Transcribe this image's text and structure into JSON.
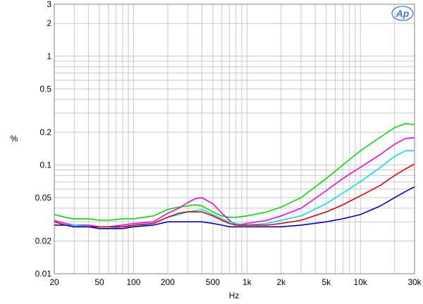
{
  "chart_data": {
    "type": "line",
    "title": "",
    "xlabel": "Hz",
    "ylabel": "%",
    "xscale": "log",
    "yscale": "log",
    "xlim": [
      20,
      30000
    ],
    "ylim": [
      0.01,
      3
    ],
    "grid": true,
    "x_ticks": [
      "20",
      "50",
      "100",
      "200",
      "500",
      "1k",
      "2k",
      "5k",
      "10k",
      "30k"
    ],
    "y_ticks": [
      "3",
      "2",
      "1",
      "0.5",
      "0.2",
      "0.1",
      "0.05",
      "0.02",
      "0.01"
    ],
    "logo": "Ap",
    "series": [
      {
        "color": "#00dd00",
        "x": [
          20,
          25,
          30,
          40,
          50,
          60,
          80,
          100,
          150,
          200,
          250,
          300,
          350,
          400,
          500,
          600,
          700,
          800,
          1000,
          1500,
          2000,
          3000,
          5000,
          7000,
          10000,
          15000,
          20000,
          25000,
          30000
        ],
        "y": [
          0.035,
          0.033,
          0.032,
          0.032,
          0.031,
          0.031,
          0.032,
          0.032,
          0.034,
          0.039,
          0.041,
          0.042,
          0.043,
          0.042,
          0.037,
          0.034,
          0.033,
          0.033,
          0.034,
          0.037,
          0.041,
          0.05,
          0.075,
          0.1,
          0.135,
          0.18,
          0.22,
          0.24,
          0.235
        ]
      },
      {
        "color": "#ee00ee",
        "x": [
          20,
          25,
          30,
          40,
          50,
          60,
          80,
          100,
          150,
          200,
          250,
          300,
          350,
          400,
          500,
          600,
          700,
          800,
          1000,
          1500,
          2000,
          3000,
          5000,
          7000,
          10000,
          15000,
          20000,
          25000,
          30000
        ],
        "y": [
          0.031,
          0.029,
          0.028,
          0.028,
          0.027,
          0.027,
          0.028,
          0.029,
          0.03,
          0.036,
          0.04,
          0.045,
          0.049,
          0.05,
          0.044,
          0.036,
          0.031,
          0.028,
          0.029,
          0.031,
          0.034,
          0.04,
          0.058,
          0.075,
          0.095,
          0.125,
          0.155,
          0.175,
          0.178
        ]
      },
      {
        "color": "#00e0e0",
        "x": [
          20,
          25,
          30,
          40,
          50,
          60,
          80,
          100,
          150,
          200,
          250,
          300,
          350,
          400,
          500,
          600,
          700,
          800,
          1000,
          1500,
          2000,
          3000,
          5000,
          7000,
          10000,
          15000,
          20000,
          25000,
          30000
        ],
        "y": [
          0.03,
          0.028,
          0.028,
          0.027,
          0.026,
          0.026,
          0.027,
          0.027,
          0.029,
          0.033,
          0.035,
          0.037,
          0.038,
          0.039,
          0.035,
          0.032,
          0.03,
          0.029,
          0.028,
          0.029,
          0.031,
          0.034,
          0.044,
          0.055,
          0.07,
          0.095,
          0.12,
          0.135,
          0.135
        ]
      },
      {
        "color": "#dd0000",
        "x": [
          20,
          25,
          30,
          40,
          50,
          60,
          80,
          100,
          150,
          200,
          250,
          300,
          350,
          400,
          500,
          600,
          700,
          800,
          1000,
          1500,
          2000,
          3000,
          5000,
          7000,
          10000,
          15000,
          20000,
          25000,
          30000
        ],
        "y": [
          0.03,
          0.028,
          0.027,
          0.027,
          0.027,
          0.027,
          0.027,
          0.028,
          0.029,
          0.033,
          0.036,
          0.037,
          0.037,
          0.037,
          0.034,
          0.031,
          0.029,
          0.028,
          0.028,
          0.028,
          0.029,
          0.031,
          0.037,
          0.043,
          0.052,
          0.065,
          0.08,
          0.092,
          0.102
        ]
      },
      {
        "color": "#0000cc",
        "x": [
          20,
          25,
          30,
          40,
          50,
          60,
          80,
          100,
          150,
          200,
          250,
          300,
          350,
          400,
          500,
          600,
          700,
          800,
          1000,
          1500,
          2000,
          3000,
          5000,
          7000,
          10000,
          15000,
          20000,
          25000,
          30000
        ],
        "y": [
          0.028,
          0.028,
          0.027,
          0.027,
          0.026,
          0.026,
          0.026,
          0.027,
          0.028,
          0.03,
          0.03,
          0.03,
          0.03,
          0.03,
          0.029,
          0.028,
          0.027,
          0.027,
          0.027,
          0.027,
          0.027,
          0.028,
          0.03,
          0.032,
          0.035,
          0.042,
          0.05,
          0.057,
          0.063
        ]
      }
    ]
  }
}
